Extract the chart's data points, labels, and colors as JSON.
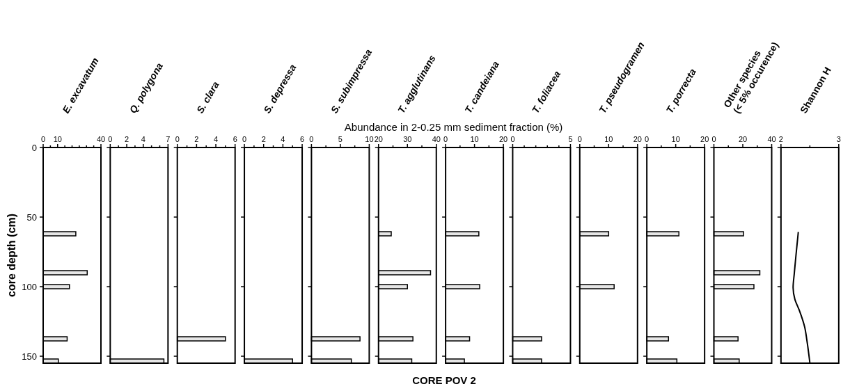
{
  "chart_data": [
    {
      "type": "bar",
      "orientation": "horizontal",
      "title": "E. excavatum",
      "ylabel": "core depth (cm)",
      "annotations": [
        "CORE POV 2"
      ],
      "x": [
        62,
        90,
        100,
        137.5,
        153.5
      ],
      "values": [
        22.6,
        30.5,
        18.2,
        16.6,
        10.5
      ],
      "color": "#e6e6e6",
      "xlim": [
        0,
        40
      ],
      "xticks": [
        0,
        {
          "value": 5,
          "label": null
        },
        10,
        {
          "value": 15,
          "label": null
        },
        {
          "value": 20,
          "label": null
        },
        {
          "value": 25,
          "label": null
        },
        {
          "value": 30,
          "label": null
        },
        {
          "value": 35,
          "label": null
        },
        40
      ],
      "ylim": [
        155,
        0
      ],
      "yticks": [
        0,
        50,
        100,
        150
      ]
    },
    {
      "type": "bar",
      "orientation": "horizontal",
      "title": "Q. polygona",
      "tick_labels": "x",
      "x": [
        153.5
      ],
      "values": [
        6.5
      ],
      "color": "#e6e6e6",
      "xlim": [
        0,
        7
      ],
      "xticks": [
        0,
        {
          "value": 1,
          "label": null
        },
        2,
        {
          "value": 3,
          "label": null
        },
        4,
        {
          "value": 5,
          "label": null
        },
        {
          "value": 6,
          "label": null
        },
        7
      ],
      "ylim": [
        155,
        0
      ],
      "yticks": [
        0,
        50,
        100,
        150
      ]
    },
    {
      "type": "bar",
      "orientation": "horizontal",
      "title": "S. clara",
      "tick_labels": "x",
      "x": [
        137.5
      ],
      "values": [
        5.0
      ],
      "color": "#e6e6e6",
      "xlim": [
        0,
        6
      ],
      "xticks": [
        0,
        {
          "value": 1,
          "label": null
        },
        2,
        {
          "value": 3,
          "label": null
        },
        4,
        {
          "value": 5,
          "label": null
        },
        6
      ],
      "ylim": [
        155,
        0
      ],
      "yticks": [
        0,
        50,
        100,
        150
      ]
    },
    {
      "type": "bar",
      "orientation": "horizontal",
      "title": "S. depressa",
      "tick_labels": "x",
      "x": [
        153.5
      ],
      "values": [
        5.0
      ],
      "color": "#e6e6e6",
      "xlim": [
        0,
        6
      ],
      "xticks": [
        0,
        {
          "value": 1,
          "label": null
        },
        2,
        {
          "value": 3,
          "label": null
        },
        4,
        {
          "value": 5,
          "label": null
        },
        6
      ],
      "ylim": [
        155,
        0
      ],
      "yticks": [
        0,
        50,
        100,
        150
      ]
    },
    {
      "type": "bar",
      "orientation": "horizontal",
      "title": "S. subimpressa",
      "tick_labels": "x",
      "x": [
        137.5,
        153.5
      ],
      "values": [
        8.4,
        6.9
      ],
      "color": "#e6e6e6",
      "xlim": [
        0,
        10
      ],
      "xticks": [
        0,
        {
          "value": 2.5,
          "label": null
        },
        5,
        {
          "value": 7.5,
          "label": null
        },
        10
      ],
      "ylim": [
        155,
        0
      ],
      "yticks": [
        0,
        50,
        100,
        150
      ]
    },
    {
      "type": "bar",
      "orientation": "horizontal",
      "title": "T. agglutinans",
      "tick_labels": "x",
      "x": [
        62,
        90,
        100,
        137.5,
        153.5
      ],
      "values": [
        24.4,
        38.0,
        30.0,
        31.9,
        31.5
      ],
      "color": "#e6e6e6",
      "xlim": [
        20,
        40
      ],
      "xticks": [
        20,
        {
          "value": 25,
          "label": null
        },
        30,
        {
          "value": 35,
          "label": null
        },
        40
      ],
      "ylim": [
        155,
        0
      ],
      "yticks": [
        0,
        50,
        100,
        150
      ]
    },
    {
      "type": "bar",
      "orientation": "horizontal",
      "title": "T. candeiana",
      "xlabel": "Abundance in 2-0.25 mm sediment fraction (%)",
      "tick_labels": "x",
      "x": [
        62,
        100,
        137.5,
        153.5
      ],
      "values": [
        11.5,
        11.8,
        8.3,
        6.5
      ],
      "color": "#e6e6e6",
      "xlim": [
        0,
        20
      ],
      "xticks": [
        0,
        {
          "value": 5,
          "label": null
        },
        10,
        {
          "value": 15,
          "label": null
        },
        20
      ],
      "ylim": [
        155,
        0
      ],
      "yticks": [
        0,
        50,
        100,
        150
      ]
    },
    {
      "type": "bar",
      "orientation": "horizontal",
      "title": "T. foliacea",
      "tick_labels": "x",
      "x": [
        137.5,
        153.5
      ],
      "values": [
        2.5,
        2.5
      ],
      "color": "#e6e6e6",
      "xlim": [
        0,
        5
      ],
      "xticks": [
        0,
        {
          "value": 1,
          "label": null
        },
        {
          "value": 2,
          "label": null
        },
        {
          "value": 3,
          "label": null
        },
        {
          "value": 4,
          "label": null
        },
        5
      ],
      "ylim": [
        155,
        0
      ],
      "yticks": [
        0,
        50,
        100,
        150
      ]
    },
    {
      "type": "bar",
      "orientation": "horizontal",
      "title": "T. pseudogramen",
      "tick_labels": "x",
      "x": [
        62,
        100
      ],
      "values": [
        10.0,
        11.9
      ],
      "color": "#e6e6e6",
      "xlim": [
        0,
        20
      ],
      "xticks": [
        0,
        {
          "value": 5,
          "label": null
        },
        10,
        {
          "value": 15,
          "label": null
        },
        20
      ],
      "ylim": [
        155,
        0
      ],
      "yticks": [
        0,
        50,
        100,
        150
      ]
    },
    {
      "type": "bar",
      "orientation": "horizontal",
      "title": "T. porrecta",
      "tick_labels": "x",
      "x": [
        62,
        137.5,
        153.5
      ],
      "values": [
        11.1,
        7.5,
        10.4
      ],
      "color": "#e6e6e6",
      "xlim": [
        0,
        20
      ],
      "xticks": [
        0,
        {
          "value": 5,
          "label": null
        },
        10,
        {
          "value": 15,
          "label": null
        },
        20
      ],
      "ylim": [
        155,
        0
      ],
      "yticks": [
        0,
        50,
        100,
        150
      ]
    },
    {
      "type": "bar",
      "orientation": "horizontal",
      "title": "Other species\n(< 5% occurence)",
      "tick_labels": "x",
      "x": [
        62,
        90,
        100,
        137.5,
        153.5
      ],
      "values": [
        20.5,
        31.8,
        27.7,
        16.7,
        17.5
      ],
      "color": "#e6e6e6",
      "xlim": [
        0,
        40
      ],
      "xticks": [
        0,
        {
          "value": 10,
          "label": null
        },
        20,
        {
          "value": 30,
          "label": null
        },
        40
      ],
      "ylim": [
        155,
        0
      ],
      "yticks": [
        0,
        50,
        100,
        150
      ]
    },
    {
      "type": "line",
      "orientation": "horizontal",
      "title": "Shannon H",
      "tick_labels": "x",
      "marker": "none",
      "x": [
        60.7,
        77.3,
        90.7,
        100.7,
        109,
        117.3,
        129,
        139,
        154.8
      ],
      "values": [
        2.3,
        2.26,
        2.23,
        2.21,
        2.24,
        2.32,
        2.41,
        2.45,
        2.5
      ],
      "color": "#000000",
      "xlim": [
        2,
        3
      ],
      "xticks": [
        2,
        {
          "value": 2.5,
          "label": null
        },
        3
      ],
      "ylim": [
        155,
        0
      ],
      "yticks": [
        0,
        50,
        100,
        150
      ]
    }
  ]
}
